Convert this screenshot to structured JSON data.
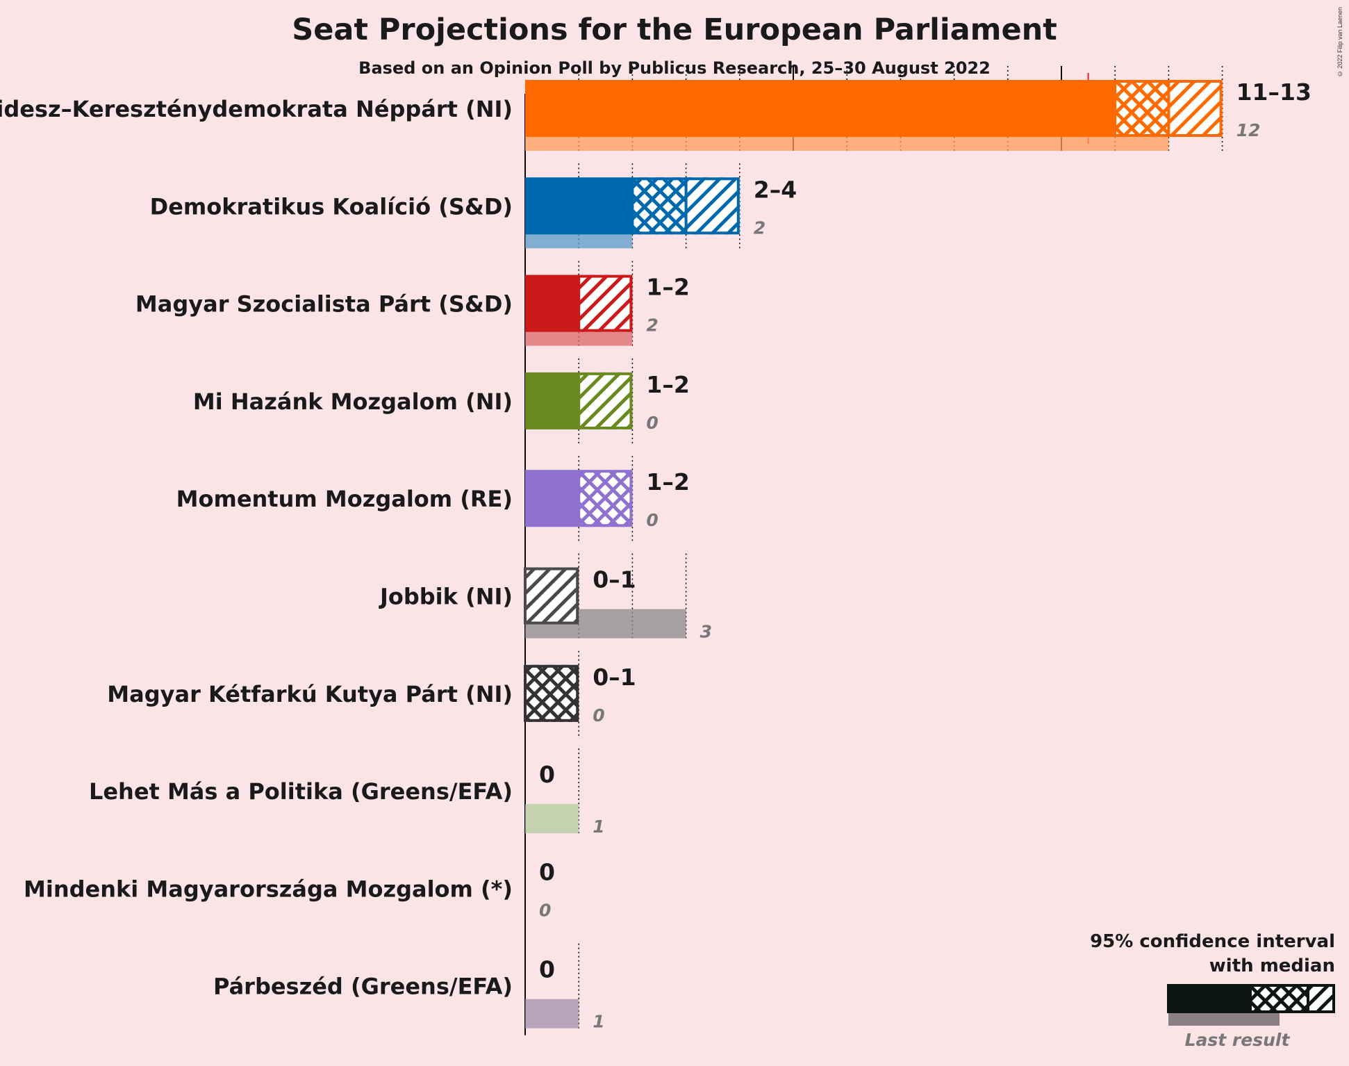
{
  "title": "Seat Projections for the European Parliament",
  "subtitle": "Based on an Opinion Poll by Publicus Research, 25–30 August 2022",
  "copyright": "© 2022 Filip van Laenen",
  "legend": {
    "line1": "95% confidence interval",
    "line2": "with median",
    "last_result": "Last result"
  },
  "chart_data": {
    "type": "bar",
    "orientation": "horizontal",
    "title": "Seat Projections for the European Parliament",
    "subtitle": "Based on an Opinion Poll by Publicus Research, 25–30 August 2022",
    "xlim": [
      0,
      13
    ],
    "majority": 10.5,
    "parties": [
      {
        "name": "Fidesz–Kereszténydemokrata Néppárt (NI)",
        "low": 11,
        "median": 12,
        "high": 13,
        "range_label": "11–13",
        "last": 12,
        "last_label": "12",
        "color": "#ff6a00",
        "median_style": "crosshatch"
      },
      {
        "name": "Demokratikus Koalíció (S&D)",
        "low": 2,
        "median": 3,
        "high": 4,
        "range_label": "2–4",
        "last": 2,
        "last_label": "2",
        "color": "#0068ad",
        "median_style": "crosshatch"
      },
      {
        "name": "Magyar Szocialista Párt (S&D)",
        "low": 1,
        "median": 1,
        "high": 2,
        "range_label": "1–2",
        "last": 2,
        "last_label": "2",
        "color": "#cc1a1a",
        "median_style": "hatch"
      },
      {
        "name": "Mi Hazánk Mozgalom (NI)",
        "low": 1,
        "median": 1,
        "high": 2,
        "range_label": "1–2",
        "last": 0,
        "last_label": "0",
        "color": "#688a1e",
        "median_style": "hatch"
      },
      {
        "name": "Momentum Mozgalom (RE)",
        "low": 1,
        "median": 2,
        "high": 2,
        "range_label": "1–2",
        "last": 0,
        "last_label": "0",
        "color": "#8f72cf",
        "median_style": "crosshatch"
      },
      {
        "name": "Jobbik (NI)",
        "low": 0,
        "median": 0,
        "high": 1,
        "range_label": "0–1",
        "last": 3,
        "last_label": "3",
        "color": "#4a4a4a",
        "median_style": "hatch"
      },
      {
        "name": "Magyar Kétfarkú Kutya Párt (NI)",
        "low": 0,
        "median": 1,
        "high": 1,
        "range_label": "0–1",
        "last": 0,
        "last_label": "0",
        "color": "#333333",
        "median_style": "crosshatch"
      },
      {
        "name": "Lehet Más a Politika (Greens/EFA)",
        "low": 0,
        "median": 0,
        "high": 0,
        "range_label": "0",
        "last": 1,
        "last_label": "1",
        "color": "#8cb369",
        "median_style": "none"
      },
      {
        "name": "Mindenki Magyarországa Mozgalom (*)",
        "low": 0,
        "median": 0,
        "high": 0,
        "range_label": "0",
        "last": 0,
        "last_label": "0",
        "color": "#999999",
        "median_style": "none"
      },
      {
        "name": "Párbeszéd (Greens/EFA)",
        "low": 0,
        "median": 0,
        "high": 0,
        "range_label": "0",
        "last": 1,
        "last_label": "1",
        "color": "#6e4f7a",
        "median_style": "none"
      }
    ]
  }
}
